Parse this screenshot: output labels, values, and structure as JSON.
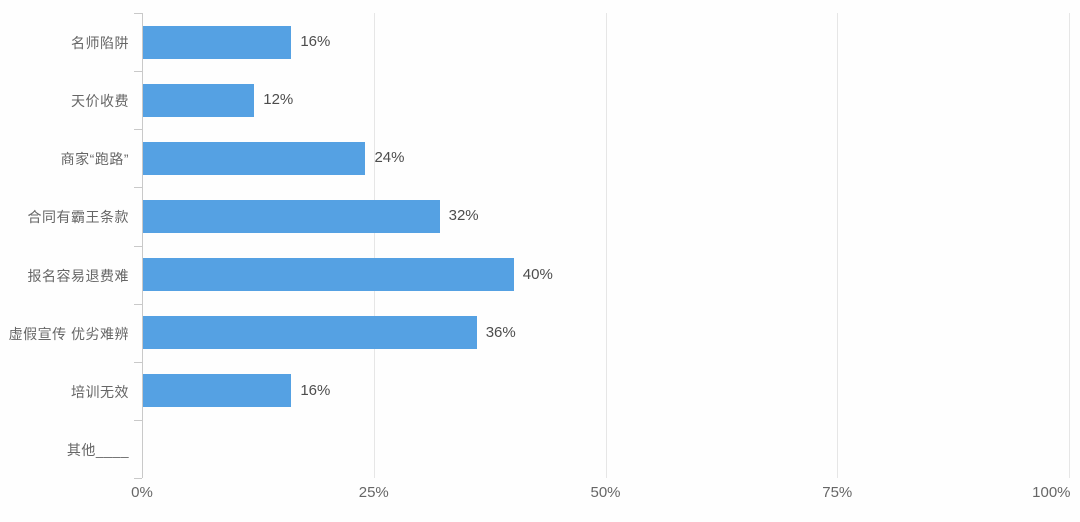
{
  "chart_data": {
    "type": "bar",
    "orientation": "horizontal",
    "title": "",
    "xlabel": "",
    "ylabel": "",
    "categories": [
      "名师陷阱",
      "天价收费",
      "商家“跑路”",
      "合同有霸王条款",
      "报名容易退费难",
      "虚假宣传 优劣难辨",
      "培训无效",
      "其他____"
    ],
    "values": [
      16,
      12,
      24,
      32,
      40,
      36,
      16,
      0
    ],
    "value_labels": [
      "16%",
      "12%",
      "24%",
      "32%",
      "40%",
      "36%",
      "16%",
      ""
    ],
    "x_ticks": [
      "0%",
      "25%",
      "50%",
      "75%",
      "100%"
    ],
    "x_tick_values": [
      0,
      25,
      50,
      75,
      100
    ],
    "xlim": [
      0,
      100
    ],
    "grid": true,
    "legend": "none",
    "colors": {
      "bar": "#55a1e3",
      "gridline": "#e6e6e6",
      "axis": "#c9c9c9",
      "category_label": "#666666",
      "value_label": "#4d4d4d",
      "tick_label": "#666666",
      "background": "#fefefe"
    }
  }
}
